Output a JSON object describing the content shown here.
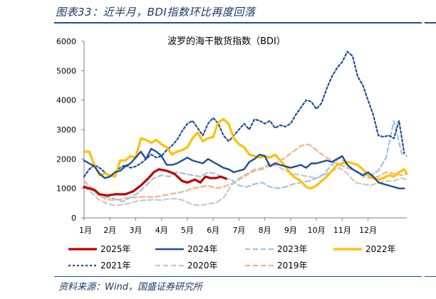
{
  "header": {
    "title": "图表33：近半月，BDI指数环比再度回落"
  },
  "footer": {
    "source": "资料来源：Wind，国盛证券研究所"
  },
  "colors": {
    "2025": "#c00000",
    "2024": "#1f4e9a",
    "2023": "#9dc3e6",
    "2022": "#ffc000",
    "2021": "#1f4e9a",
    "2020": "#c9c9c9",
    "2019": "#f4b183"
  },
  "chart_data": {
    "type": "line",
    "title": "波罗的海干散货指数（BDI）",
    "xlabel": "",
    "ylabel": "",
    "x_ticks": [
      "1月",
      "2月",
      "3月",
      "4月",
      "5月",
      "6月",
      "7月",
      "8月",
      "9月",
      "10月",
      "11月",
      "12月"
    ],
    "y_ticks": [
      "6000",
      "5000",
      "4000",
      "3000",
      "2000",
      "1000",
      "0"
    ],
    "ylim": [
      0,
      6000
    ],
    "xlim": [
      0,
      12.5
    ],
    "grid": false,
    "legend_position": "bottom",
    "series": [
      {
        "name": "2025年",
        "key": "2025",
        "style": "solid-thick",
        "x": [
          0,
          0.2,
          0.4,
          0.6,
          0.9,
          1.2,
          1.6,
          1.9,
          2.2,
          2.5,
          2.7,
          2.9,
          3.2,
          3.5,
          3.8,
          4.0,
          4.3,
          4.5,
          4.7,
          4.9,
          5.1,
          5.3,
          5.5
        ],
        "y": [
          1050,
          1000,
          950,
          800,
          760,
          800,
          800,
          900,
          1100,
          1350,
          1550,
          1650,
          1600,
          1500,
          1250,
          1200,
          1300,
          1200,
          1400,
          1350,
          1350,
          1400,
          1330
        ]
      },
      {
        "name": "2024年",
        "key": "2024",
        "style": "solid",
        "x": [
          0,
          0.2,
          0.4,
          0.6,
          0.8,
          1.0,
          1.2,
          1.4,
          1.6,
          1.8,
          2.0,
          2.2,
          2.4,
          2.6,
          2.8,
          3.0,
          3.2,
          3.4,
          3.6,
          3.8,
          4.0,
          4.2,
          4.4,
          4.6,
          4.8,
          5.0,
          5.2,
          5.4,
          5.6,
          5.8,
          6.0,
          6.2,
          6.4,
          6.6,
          6.8,
          7.0,
          7.2,
          7.4,
          7.6,
          7.8,
          8.0,
          8.2,
          8.4,
          8.6,
          8.8,
          9.0,
          9.2,
          9.4,
          9.6,
          9.8,
          10.0,
          10.2,
          10.4,
          10.6,
          10.8,
          11.0,
          11.2,
          11.4,
          11.6,
          11.8,
          12.0,
          12.2,
          12.4
        ],
        "y": [
          1950,
          1850,
          1750,
          1500,
          1350,
          1400,
          1550,
          1600,
          1750,
          1850,
          2050,
          2250,
          2000,
          2350,
          2250,
          2100,
          1800,
          1800,
          1850,
          1950,
          2050,
          1950,
          1900,
          1850,
          2000,
          1900,
          1800,
          1700,
          1650,
          1550,
          1600,
          1650,
          1900,
          2000,
          2150,
          2100,
          1750,
          1850,
          1800,
          1750,
          1700,
          1750,
          1800,
          1700,
          1850,
          1850,
          1900,
          1950,
          1900,
          2000,
          2100,
          1800,
          1650,
          1550,
          1450,
          1550,
          1400,
          1200,
          1150,
          1100,
          1050,
          1000,
          1000
        ]
      },
      {
        "name": "2023年",
        "key": "2023",
        "style": "dashed",
        "x": [
          0,
          0.3,
          0.6,
          0.9,
          1.2,
          1.5,
          1.8,
          2.1,
          2.4,
          2.7,
          3.0,
          3.3,
          3.6,
          3.9,
          4.2,
          4.5,
          4.8,
          5.1,
          5.4,
          5.7,
          6.0,
          6.3,
          6.6,
          6.9,
          7.2,
          7.5,
          7.8,
          8.1,
          8.4,
          8.7,
          9.0,
          9.3,
          9.6,
          9.9,
          10.2,
          10.5,
          10.8,
          11.1,
          11.4,
          11.7,
          12.0,
          12.3,
          12.5
        ],
        "y": [
          1100,
          950,
          800,
          700,
          650,
          550,
          700,
          850,
          1100,
          1350,
          1450,
          1400,
          1550,
          1500,
          1450,
          1400,
          1550,
          1500,
          1350,
          1300,
          1100,
          1050,
          1150,
          1200,
          1050,
          1000,
          1050,
          1150,
          1200,
          1250,
          1350,
          1500,
          1800,
          2050,
          1800,
          1600,
          1450,
          1450,
          1600,
          2050,
          3300,
          2200,
          2100
        ]
      },
      {
        "name": "2022年",
        "key": "2022",
        "style": "solid-thick",
        "x": [
          0,
          0.2,
          0.4,
          0.6,
          0.8,
          1.0,
          1.2,
          1.4,
          1.6,
          1.8,
          2.0,
          2.2,
          2.4,
          2.6,
          2.8,
          3.0,
          3.2,
          3.4,
          3.6,
          3.8,
          4.0,
          4.2,
          4.4,
          4.6,
          4.8,
          5.0,
          5.2,
          5.4,
          5.6,
          5.8,
          6.0,
          6.2,
          6.4,
          6.6,
          6.8,
          7.0,
          7.2,
          7.4,
          7.6,
          7.8,
          8.0,
          8.2,
          8.4,
          8.6,
          8.8,
          9.0,
          9.2,
          9.4,
          9.6,
          9.8,
          10.0,
          10.2,
          10.4,
          10.6,
          10.8,
          11.0,
          11.2,
          11.4,
          11.6,
          11.8,
          12.0,
          12.2,
          12.4,
          12.5
        ],
        "y": [
          2250,
          2250,
          1800,
          1450,
          1500,
          1450,
          1400,
          1950,
          1950,
          2100,
          2050,
          2700,
          2650,
          2550,
          2650,
          2500,
          2400,
          2150,
          2250,
          2300,
          2400,
          2700,
          2900,
          2600,
          2700,
          2750,
          3250,
          3350,
          3200,
          2700,
          2500,
          2400,
          2150,
          2100,
          2050,
          2100,
          2050,
          2150,
          1950,
          1750,
          1500,
          1350,
          1250,
          1050,
          1000,
          1100,
          1250,
          1400,
          1600,
          1800,
          1850,
          1900,
          1850,
          1800,
          1650,
          1450,
          1350,
          1300,
          1350,
          1450,
          1400,
          1550,
          1650,
          1500
        ]
      },
      {
        "name": "2021年",
        "key": "2021",
        "style": "dashed-small",
        "x": [
          0,
          0.2,
          0.4,
          0.6,
          0.8,
          1.0,
          1.2,
          1.4,
          1.6,
          1.8,
          2.0,
          2.2,
          2.4,
          2.6,
          2.8,
          3.0,
          3.2,
          3.4,
          3.6,
          3.8,
          4.0,
          4.2,
          4.4,
          4.6,
          4.8,
          5.0,
          5.2,
          5.4,
          5.6,
          5.8,
          6.0,
          6.2,
          6.4,
          6.6,
          6.8,
          7.0,
          7.2,
          7.4,
          7.6,
          7.8,
          8.0,
          8.2,
          8.4,
          8.6,
          8.8,
          9.0,
          9.2,
          9.4,
          9.6,
          9.8,
          10.0,
          10.2,
          10.4,
          10.6,
          10.8,
          11.0,
          11.2,
          11.4,
          11.6,
          11.8,
          12.0,
          12.2,
          12.4
        ],
        "y": [
          1400,
          1650,
          1800,
          1700,
          1550,
          1400,
          1550,
          1700,
          1800,
          1700,
          1750,
          1850,
          2000,
          2150,
          2050,
          2100,
          2300,
          2450,
          2650,
          2950,
          3200,
          3300,
          3050,
          2800,
          3200,
          3400,
          3200,
          2800,
          2600,
          2800,
          3000,
          3200,
          3000,
          3350,
          3300,
          3200,
          3300,
          3050,
          3150,
          3100,
          3200,
          3500,
          3750,
          4000,
          3950,
          3700,
          3900,
          4400,
          4800,
          5100,
          5300,
          5650,
          5500,
          4800,
          4500,
          4000,
          3500,
          2800,
          2750,
          2800,
          2700,
          3300,
          2200
        ]
      },
      {
        "name": "2020年",
        "key": "2020",
        "style": "dashed",
        "x": [
          0,
          0.3,
          0.6,
          0.9,
          1.2,
          1.5,
          1.8,
          2.1,
          2.4,
          2.7,
          3.0,
          3.3,
          3.6,
          3.9,
          4.2,
          4.5,
          4.8,
          5.1,
          5.4,
          5.7,
          6.0,
          6.3,
          6.6,
          6.9,
          7.2,
          7.5,
          7.8,
          8.1,
          8.4,
          8.7,
          9.0,
          9.3,
          9.6,
          9.9,
          10.2,
          10.5,
          10.8,
          11.1,
          11.4,
          11.7,
          12.0,
          12.3,
          12.5
        ],
        "y": [
          1050,
          850,
          600,
          480,
          420,
          450,
          500,
          580,
          600,
          620,
          600,
          650,
          650,
          580,
          450,
          420,
          480,
          500,
          680,
          1100,
          1350,
          1500,
          1650,
          1700,
          1850,
          1750,
          1600,
          1500,
          1450,
          1400,
          1350,
          1450,
          1600,
          1700,
          1500,
          1200,
          1150,
          1100,
          1200,
          1250,
          1250,
          1350,
          1300
        ]
      },
      {
        "name": "2019年",
        "key": "2019",
        "style": "dashed",
        "x": [
          0,
          0.3,
          0.6,
          0.9,
          1.2,
          1.5,
          1.8,
          2.1,
          2.4,
          2.7,
          3.0,
          3.3,
          3.6,
          3.9,
          4.2,
          4.5,
          4.8,
          5.1,
          5.4,
          5.7,
          6.0,
          6.3,
          6.6,
          6.9,
          7.2,
          7.5,
          7.8,
          8.1,
          8.4,
          8.7,
          9.0,
          9.3,
          9.6,
          9.9,
          10.2,
          10.5,
          10.8,
          11.1,
          11.4,
          11.7,
          12.0,
          12.3,
          12.5
        ],
        "y": [
          1250,
          1000,
          750,
          620,
          600,
          650,
          680,
          700,
          720,
          700,
          750,
          800,
          850,
          900,
          1000,
          1050,
          1100,
          1000,
          1050,
          1150,
          1300,
          1450,
          1600,
          1650,
          1800,
          1900,
          2050,
          2250,
          2450,
          2500,
          2300,
          2100,
          1950,
          1800,
          1700,
          1600,
          1400,
          1350,
          1400,
          1550,
          1500,
          1450,
          1500
        ]
      }
    ]
  }
}
